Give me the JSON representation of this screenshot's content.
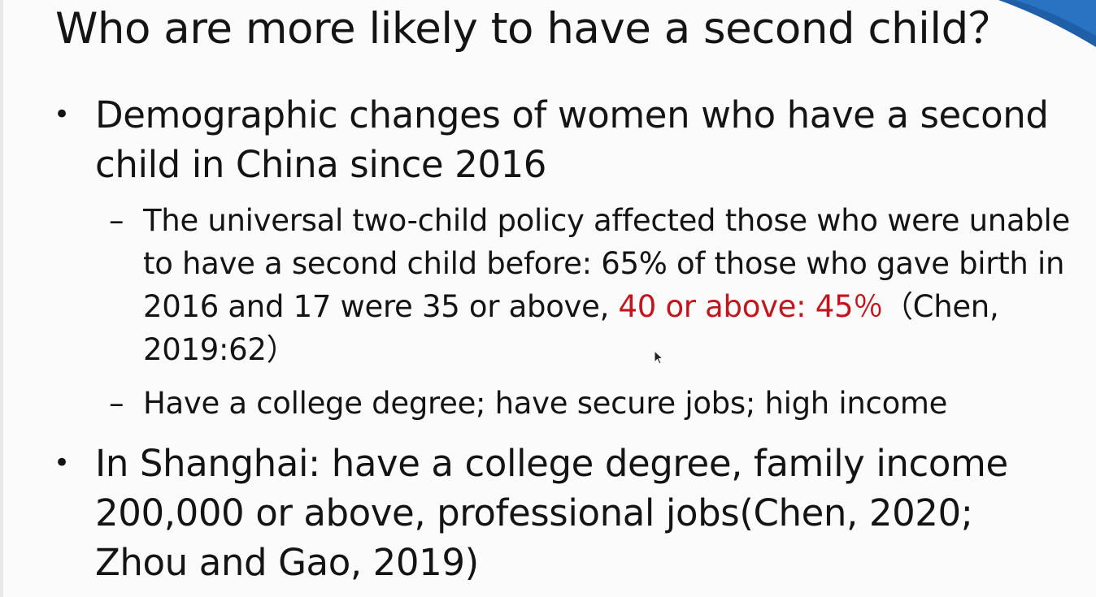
{
  "slide": {
    "title": "Who are more likely to have a second child？",
    "bullet_1": {
      "text": "Demographic changes of women who have a second child in China since 2016",
      "sub_1": {
        "text_before": "The universal two-child policy affected those who were unable to have a second child before:  65% of those who gave birth in 2016 and 17 were 35 or above, ",
        "highlight": "40 or above: 45％",
        "text_after": "（Chen, 2019:62）"
      },
      "sub_2": {
        "text": "Have a college degree; have secure jobs; high income"
      }
    },
    "bullet_2": {
      "text": "In Shanghai: have a college degree, family income 200,000 or above, professional jobs(Chen, 2020; Zhou and Gao, 2019)"
    },
    "bullet_symbol": "•",
    "dash_symbol": "–"
  },
  "colors": {
    "text": "#141414",
    "highlight": "#c0161c",
    "accent": "#1f5fa8",
    "background": "#fbfbfb"
  },
  "icons": {
    "cursor": "mouse-pointer-icon"
  }
}
